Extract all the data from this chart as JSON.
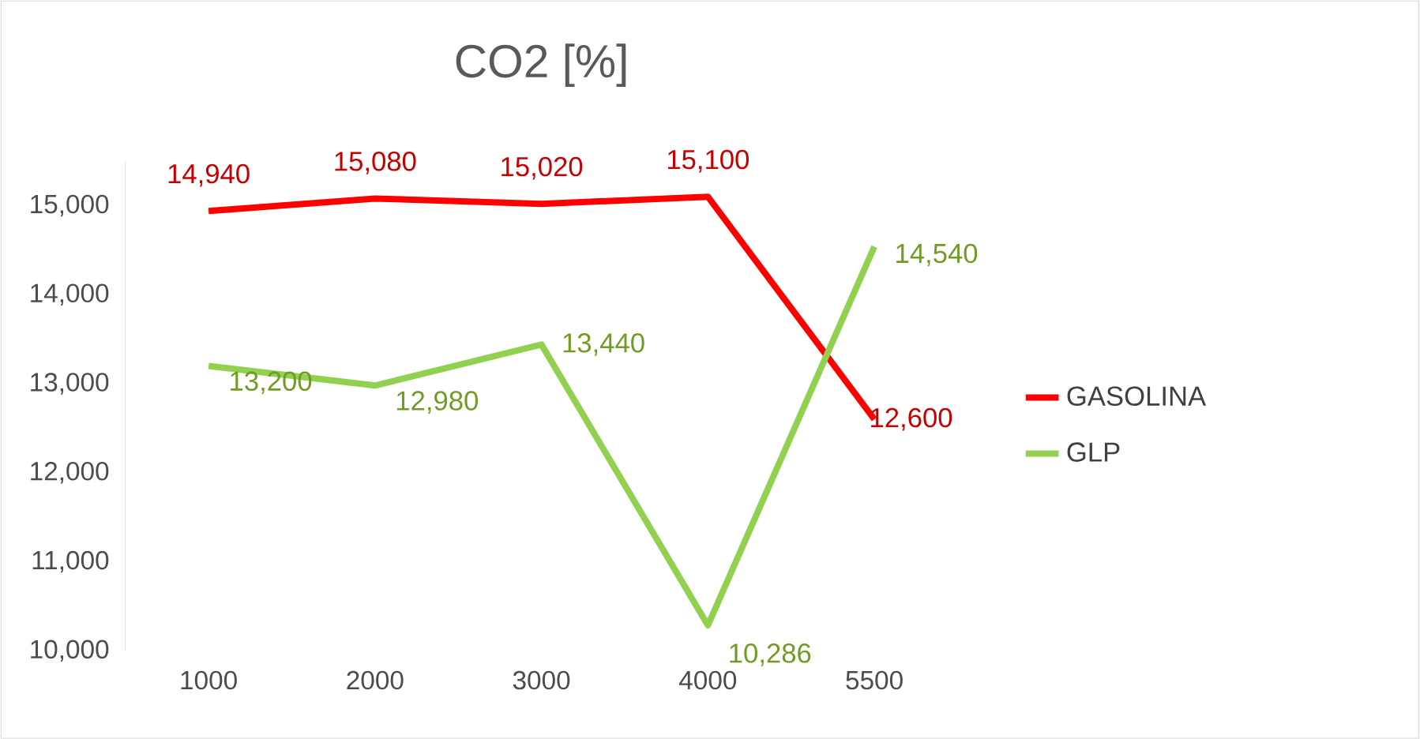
{
  "chart_data": {
    "type": "line",
    "title": "CO2 [%]",
    "categories": [
      "1000",
      "2000",
      "3000",
      "4000",
      "5500"
    ],
    "series": [
      {
        "name": "GASOLINA",
        "color": "#ff0000",
        "values": [
          14940,
          15080,
          15020,
          15100,
          12600
        ],
        "value_labels": [
          "14,940",
          "15,080",
          "15,020",
          "15,100",
          "12,600"
        ]
      },
      {
        "name": "GLP",
        "color": "#92d050",
        "values": [
          13200,
          12980,
          13440,
          10286,
          14540
        ],
        "value_labels": [
          "13,200",
          "12,980",
          "13,440",
          "10,286",
          "14,540"
        ]
      }
    ],
    "ylim": [
      10000,
      15500
    ],
    "yticks": [
      {
        "value": 10000,
        "label": "10,000"
      },
      {
        "value": 11000,
        "label": "11,000"
      },
      {
        "value": 12000,
        "label": "12,000"
      },
      {
        "value": 13000,
        "label": "13,000"
      },
      {
        "value": 14000,
        "label": "14,000"
      },
      {
        "value": 15000,
        "label": "15,000"
      }
    ],
    "grid": false,
    "legend": "right",
    "marker": "none",
    "line_style": "solid"
  }
}
